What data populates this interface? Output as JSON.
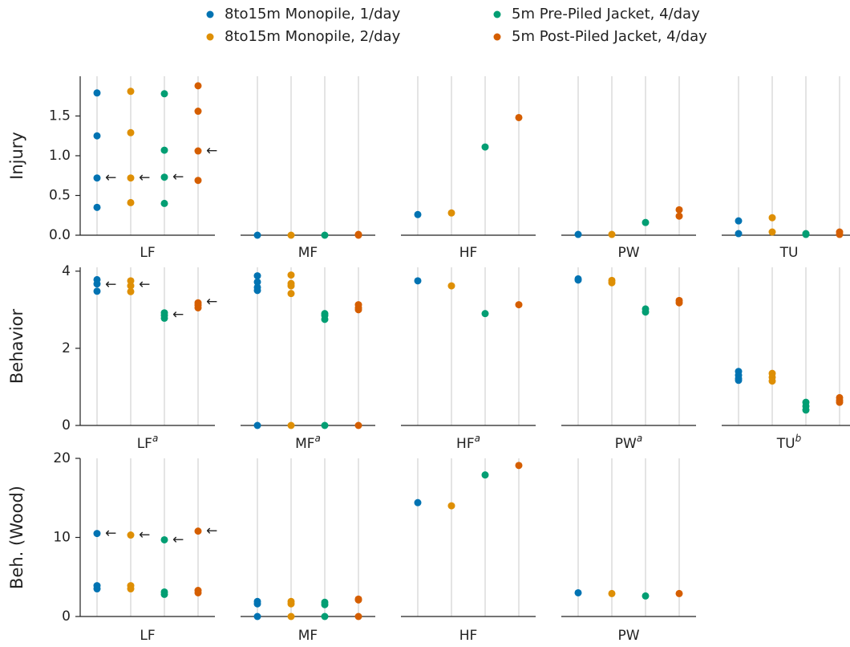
{
  "legend": [
    {
      "name": "8to15m Monopile, 1/day",
      "color": "#0173b2"
    },
    {
      "name": "8to15m Monopile, 2/day",
      "color": "#de8f05"
    },
    {
      "name": "5m Pre-Piled Jacket, 4/day",
      "color": "#029e73"
    },
    {
      "name": "5m Post-Piled Jacket, 4/day",
      "color": "#d55e00"
    }
  ],
  "chart_data": [
    {
      "type": "strip",
      "ylabel": "Injury",
      "ylim": [
        0,
        2
      ],
      "yticks": [
        {
          "value": 0,
          "label": "0.0"
        },
        0.5,
        {
          "value": 1,
          "label": "1.0"
        },
        1.5
      ],
      "panels": [
        {
          "title": "LF",
          "series": [
            {
              "values": [
                1.79,
                1.25,
                0.72,
                0.35
              ]
            },
            {
              "values": [
                1.81,
                1.29,
                0.72,
                0.41
              ]
            },
            {
              "values": [
                1.78,
                1.07,
                0.73,
                0.4
              ]
            },
            {
              "values": [
                1.88,
                1.56,
                1.06,
                0.69
              ]
            }
          ],
          "annotations": [
            {
              "series": 0,
              "y": 0.72,
              "text": "←"
            },
            {
              "series": 1,
              "y": 0.72,
              "text": "←"
            },
            {
              "series": 2,
              "y": 0.73,
              "text": "←"
            },
            {
              "series": 3,
              "y": 1.06,
              "text": "←"
            }
          ]
        },
        {
          "title": "MF",
          "series": [
            {
              "values": [
                0
              ]
            },
            {
              "values": [
                0
              ]
            },
            {
              "values": [
                0
              ]
            },
            {
              "values": [
                0.01,
                0
              ]
            }
          ]
        },
        {
          "title": "HF",
          "series": [
            {
              "values": [
                0.26
              ]
            },
            {
              "values": [
                0.28
              ]
            },
            {
              "values": [
                1.11
              ]
            },
            {
              "values": [
                1.48
              ]
            }
          ]
        },
        {
          "title": "PW",
          "series": [
            {
              "values": [
                0.01
              ]
            },
            {
              "values": [
                0.01
              ]
            },
            {
              "values": [
                0.16
              ]
            },
            {
              "values": [
                0.32,
                0.24
              ]
            }
          ]
        },
        {
          "title": "TU",
          "series": [
            {
              "values": [
                0.18,
                0.02
              ]
            },
            {
              "values": [
                0.22,
                0.04
              ]
            },
            {
              "values": [
                0.01,
                0.02
              ]
            },
            {
              "values": [
                0.04,
                0.01
              ]
            }
          ]
        }
      ]
    },
    {
      "type": "strip",
      "ylabel": "Behavior",
      "ylim": [
        0,
        4.1
      ],
      "yticks": [
        0,
        2,
        4
      ],
      "panels": [
        {
          "title": "LF",
          "title_sup": "a",
          "series": [
            {
              "values": [
                3.78,
                3.67,
                3.48
              ]
            },
            {
              "values": [
                3.75,
                3.62,
                3.47
              ]
            },
            {
              "values": [
                2.92,
                2.85,
                2.78
              ]
            },
            {
              "values": [
                3.18,
                3.12,
                3.05
              ]
            }
          ],
          "annotations": [
            {
              "series": 0,
              "y": 3.65,
              "text": "←"
            },
            {
              "series": 1,
              "y": 3.65,
              "text": "←"
            },
            {
              "series": 2,
              "y": 2.87,
              "text": "←"
            },
            {
              "series": 3,
              "y": 3.2,
              "text": "←"
            }
          ]
        },
        {
          "title": "MF",
          "title_sup": "a",
          "series": [
            {
              "values": [
                3.88,
                3.72,
                3.58,
                3.5,
                0
              ]
            },
            {
              "values": [
                3.9,
                3.68,
                3.62,
                3.42,
                0
              ]
            },
            {
              "values": [
                2.9,
                2.85,
                2.75,
                0
              ]
            },
            {
              "values": [
                3.13,
                3.05,
                3.0,
                0
              ]
            }
          ]
        },
        {
          "title": "HF",
          "title_sup": "a",
          "series": [
            {
              "values": [
                3.75
              ]
            },
            {
              "values": [
                3.62
              ]
            },
            {
              "values": [
                2.9
              ]
            },
            {
              "values": [
                3.13
              ]
            }
          ]
        },
        {
          "title": "PW",
          "title_sup": "a",
          "series": [
            {
              "values": [
                3.8,
                3.77
              ]
            },
            {
              "values": [
                3.76,
                3.7
              ]
            },
            {
              "values": [
                3.02,
                2.94
              ]
            },
            {
              "values": [
                3.24,
                3.18
              ]
            }
          ]
        },
        {
          "title": "TU",
          "title_sup": "b",
          "series": [
            {
              "values": [
                1.4,
                1.3,
                1.22,
                1.17
              ]
            },
            {
              "values": [
                1.35,
                1.25,
                1.15
              ]
            },
            {
              "values": [
                0.6,
                0.5,
                0.4
              ]
            },
            {
              "values": [
                0.72,
                0.65,
                0.6
              ]
            }
          ]
        }
      ]
    },
    {
      "type": "strip",
      "ylabel": "Beh. (Wood)",
      "ylim": [
        0,
        20
      ],
      "yticks": [
        0,
        10,
        20
      ],
      "panels": [
        {
          "title": "LF",
          "series": [
            {
              "values": [
                10.5,
                3.9,
                3.5
              ]
            },
            {
              "values": [
                10.3,
                3.9,
                3.5
              ]
            },
            {
              "values": [
                9.7,
                3.1,
                2.8
              ]
            },
            {
              "values": [
                10.8,
                3.3,
                3.0
              ]
            }
          ],
          "annotations": [
            {
              "series": 0,
              "y": 10.5,
              "text": "←"
            },
            {
              "series": 1,
              "y": 10.3,
              "text": "←"
            },
            {
              "series": 2,
              "y": 9.7,
              "text": "←"
            },
            {
              "series": 3,
              "y": 10.8,
              "text": "←"
            }
          ]
        },
        {
          "title": "MF",
          "series": [
            {
              "values": [
                1.9,
                1.6,
                0
              ]
            },
            {
              "values": [
                1.9,
                1.6,
                0
              ]
            },
            {
              "values": [
                1.8,
                1.5,
                0
              ]
            },
            {
              "values": [
                2.2,
                2.1,
                0
              ]
            }
          ]
        },
        {
          "title": "HF",
          "series": [
            {
              "values": [
                14.4
              ]
            },
            {
              "values": [
                14.0
              ]
            },
            {
              "values": [
                17.9
              ]
            },
            {
              "values": [
                19.1
              ]
            }
          ]
        },
        {
          "title": "PW",
          "series": [
            {
              "values": [
                3.0
              ]
            },
            {
              "values": [
                2.9
              ]
            },
            {
              "values": [
                2.6
              ]
            },
            {
              "values": [
                2.9
              ]
            }
          ]
        }
      ]
    }
  ]
}
